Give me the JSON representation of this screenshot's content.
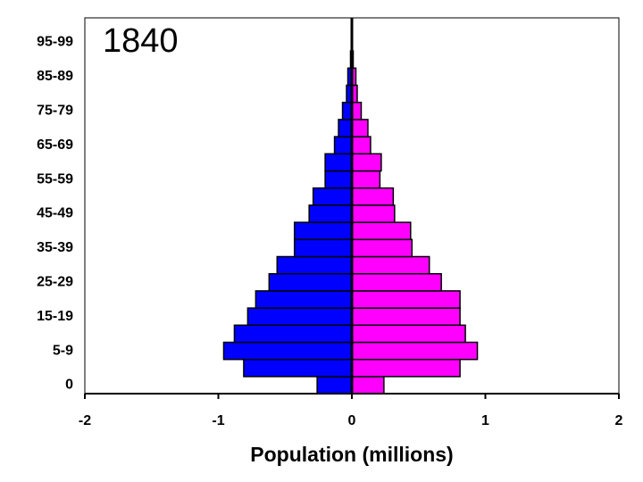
{
  "chart_data": {
    "type": "bar",
    "orientation": "horizontal",
    "annotation": "1840",
    "x_label": "Population (millions)",
    "categories": [
      "0",
      null,
      "5-9",
      null,
      "15-19",
      null,
      "25-29",
      null,
      "35-39",
      null,
      "45-49",
      null,
      "55-59",
      null,
      "65-69",
      null,
      "75-79",
      null,
      "85-89",
      null,
      "95-99"
    ],
    "series": [
      {
        "color": "#0000ff",
        "values": [
          -0.26,
          -0.81,
          -0.96,
          -0.88,
          -0.78,
          -0.72,
          -0.62,
          -0.56,
          -0.43,
          -0.43,
          -0.32,
          -0.29,
          -0.2,
          -0.2,
          -0.13,
          -0.1,
          -0.07,
          -0.04,
          -0.03,
          -0.01,
          0
        ]
      },
      {
        "color": "#ff00ff",
        "values": [
          0.24,
          0.81,
          0.94,
          0.85,
          0.81,
          0.81,
          0.67,
          0.58,
          0.45,
          0.44,
          0.32,
          0.31,
          0.21,
          0.22,
          0.14,
          0.12,
          0.07,
          0.04,
          0.03,
          0.01,
          0
        ]
      }
    ],
    "xlim": [
      -2,
      2
    ],
    "xticks": [
      -2,
      -1,
      0,
      1,
      2
    ]
  }
}
